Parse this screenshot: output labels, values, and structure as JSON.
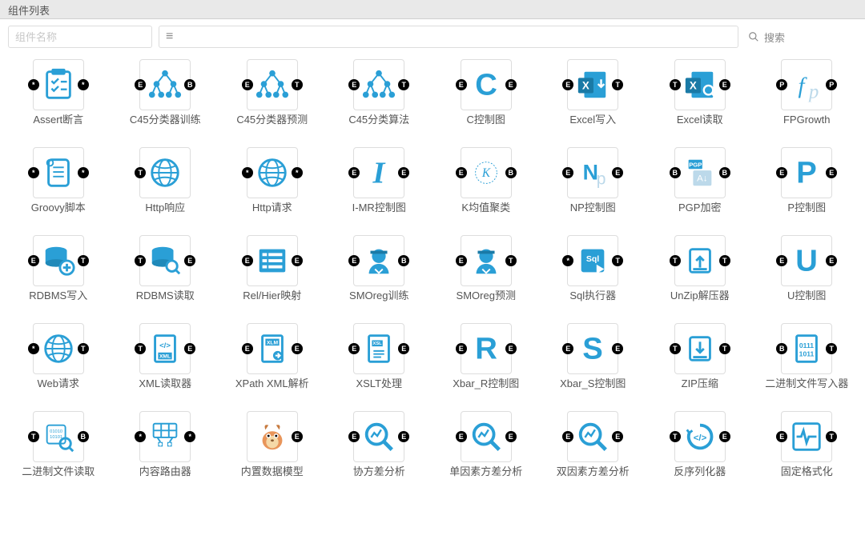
{
  "colors": {
    "primary": "#2a9fd6",
    "text": "#555555",
    "border": "#dddddd",
    "titlebar_bg": "#e9e9e9",
    "placeholder": "#c7c7c7"
  },
  "header": {
    "title": "组件列表"
  },
  "toolbar": {
    "name_placeholder": "组件名称",
    "category_glyph": "≡",
    "search_label": "搜索"
  },
  "port_letters": {
    "star": "*",
    "E": "E",
    "B": "B",
    "T": "T",
    "P": "P"
  },
  "components": [
    {
      "label": "Assert断言",
      "icon": "checklist",
      "left": "*",
      "right": "*"
    },
    {
      "label": "C45分类器训练",
      "icon": "tree",
      "left": "E",
      "right": "B"
    },
    {
      "label": "C45分类器预测",
      "icon": "tree",
      "left": "E",
      "right": "T"
    },
    {
      "label": "C45分类算法",
      "icon": "tree",
      "left": "E",
      "right": "T"
    },
    {
      "label": "C控制图",
      "icon": "letterC",
      "left": "E",
      "right": "E"
    },
    {
      "label": "Excel写入",
      "icon": "excel_down",
      "left": "E",
      "right": "T"
    },
    {
      "label": "Excel读取",
      "icon": "excel_mag",
      "left": "T",
      "right": "E"
    },
    {
      "label": "FPGrowth",
      "icon": "fp",
      "left": "P",
      "right": "P"
    },
    {
      "label": "Groovy脚本",
      "icon": "scroll",
      "left": "*",
      "right": "*"
    },
    {
      "label": "Http响应",
      "icon": "globe",
      "left": "T",
      "right": ""
    },
    {
      "label": "Http请求",
      "icon": "globe",
      "left": "*",
      "right": "*"
    },
    {
      "label": "I-MR控制图",
      "icon": "letterI",
      "left": "E",
      "right": "E"
    },
    {
      "label": "K均值聚类",
      "icon": "kcluster",
      "left": "E",
      "right": "B"
    },
    {
      "label": "NP控制图",
      "icon": "np",
      "left": "E",
      "right": "E"
    },
    {
      "label": "PGP加密",
      "icon": "pgp",
      "left": "B",
      "right": "B"
    },
    {
      "label": "P控制图",
      "icon": "letterP",
      "left": "E",
      "right": "E"
    },
    {
      "label": "RDBMS写入",
      "icon": "db_plus",
      "left": "E",
      "right": "T"
    },
    {
      "label": "RDBMS读取",
      "icon": "db_mag",
      "left": "T",
      "right": "E"
    },
    {
      "label": "Rel/Hier映射",
      "icon": "list",
      "left": "E",
      "right": "E"
    },
    {
      "label": "SMOreg训练",
      "icon": "scholar",
      "left": "E",
      "right": "B"
    },
    {
      "label": "SMOreg预测",
      "icon": "scholar",
      "left": "E",
      "right": "T"
    },
    {
      "label": "Sql执行器",
      "icon": "sql",
      "left": "*",
      "right": "T"
    },
    {
      "label": "UnZip解压器",
      "icon": "unzip",
      "left": "T",
      "right": "T"
    },
    {
      "label": "U控制图",
      "icon": "letterU",
      "left": "E",
      "right": "E"
    },
    {
      "label": "Web请求",
      "icon": "globe",
      "left": "*",
      "right": "T"
    },
    {
      "label": "XML读取器",
      "icon": "xmlfile",
      "left": "T",
      "right": "E"
    },
    {
      "label": "XPath XML解析",
      "icon": "xlm",
      "left": "E",
      "right": "E"
    },
    {
      "label": "XSLT处理",
      "icon": "xsl",
      "left": "E",
      "right": "E"
    },
    {
      "label": "Xbar_R控制图",
      "icon": "letterR",
      "left": "E",
      "right": "E"
    },
    {
      "label": "Xbar_S控制图",
      "icon": "letterS",
      "left": "E",
      "right": "E"
    },
    {
      "label": "ZIP压缩",
      "icon": "zip",
      "left": "T",
      "right": "T"
    },
    {
      "label": "二进制文件写入器",
      "icon": "binfile",
      "left": "B",
      "right": "T"
    },
    {
      "label": "二进制文件读取",
      "icon": "chip_mag",
      "left": "T",
      "right": "B"
    },
    {
      "label": "内容路由器",
      "icon": "router",
      "left": "*",
      "right": "*"
    },
    {
      "label": "内置数据模型",
      "icon": "squirrel",
      "left": "",
      "right": "E"
    },
    {
      "label": "协方差分析",
      "icon": "magchart",
      "left": "E",
      "right": "E"
    },
    {
      "label": "单因素方差分析",
      "icon": "magchart",
      "left": "E",
      "right": "E"
    },
    {
      "label": "双因素方差分析",
      "icon": "magchart",
      "left": "E",
      "right": "E"
    },
    {
      "label": "反序列化器",
      "icon": "recycle",
      "left": "T",
      "right": "E"
    },
    {
      "label": "固定格式化",
      "icon": "pulse",
      "left": "E",
      "right": "T"
    }
  ]
}
